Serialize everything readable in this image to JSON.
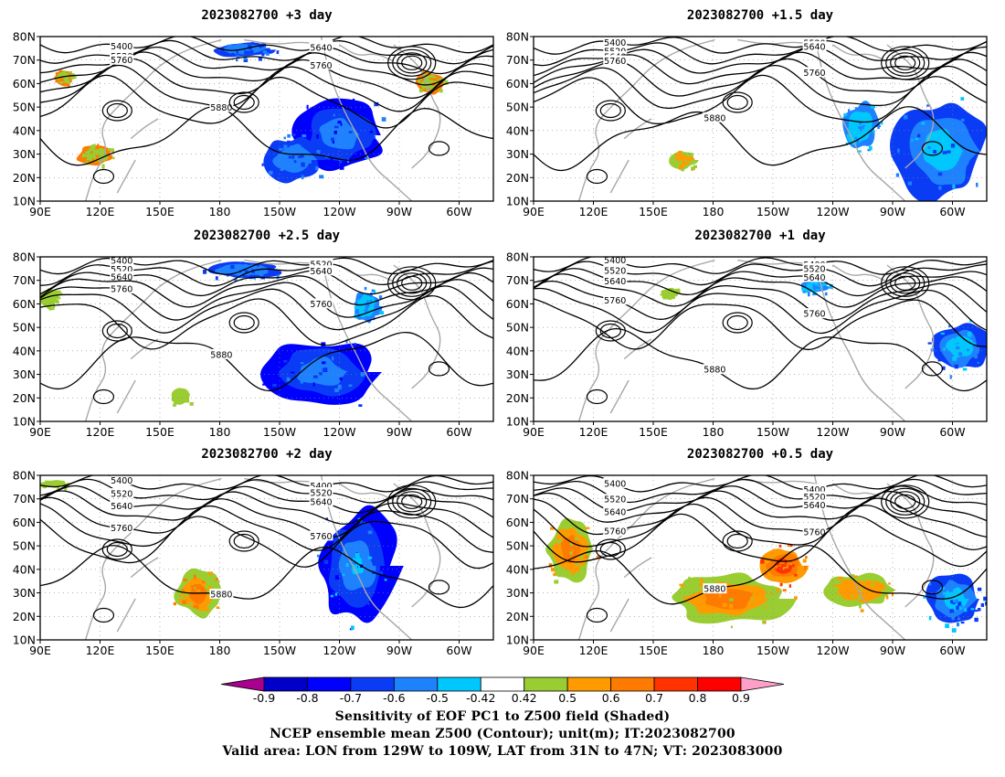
{
  "figure": {
    "panels": [
      {
        "title": "2023082700 +3 day"
      },
      {
        "title": "2023082700 +1.5 day"
      },
      {
        "title": "2023082700 +2.5 day"
      },
      {
        "title": "2023082700 +1 day"
      },
      {
        "title": "2023082700 +2 day"
      },
      {
        "title": "2023082700 +0.5 day"
      }
    ],
    "lat_ticks": [
      "80N",
      "70N",
      "60N",
      "50N",
      "40N",
      "30N",
      "20N",
      "10N"
    ],
    "lon_ticks": [
      "90E",
      "120E",
      "150E",
      "180",
      "150W",
      "120W",
      "90W",
      "60W"
    ],
    "extent": {
      "lon_min": "90E",
      "lon_max": "45W",
      "lat_min": "10N",
      "lat_max": "80N"
    },
    "contour_color": "#000000",
    "coast_color": "#a8a8a8",
    "contour_levels_labeled": [
      "5400",
      "5520",
      "5640",
      "5760",
      "5880"
    ]
  },
  "colorbar": {
    "ticks": [
      "-0.9",
      "-0.8",
      "-0.7",
      "-0.6",
      "-0.5",
      "-0.42",
      "0.42",
      "0.5",
      "0.6",
      "0.7",
      "0.8",
      "0.9"
    ],
    "colors": [
      "#aa0090",
      "#0000c8",
      "#0000ff",
      "#0a3cf5",
      "#1e82ff",
      "#00c8ff",
      "#ffffff",
      "#9acd32",
      "#ff9b00",
      "#ff7a00",
      "#ff3200",
      "#ff0000",
      "#ffa0c8"
    ]
  },
  "caption": {
    "line1": "Sensitivity of EOF PC1 to Z500 field (Shaded)",
    "line2": "NCEP ensemble mean Z500 (Contour); unit(m); IT:2023082700",
    "line3": "Valid area: LON from 129W to 109W, LAT from 31N to 47N; VT: 2023083000"
  }
}
